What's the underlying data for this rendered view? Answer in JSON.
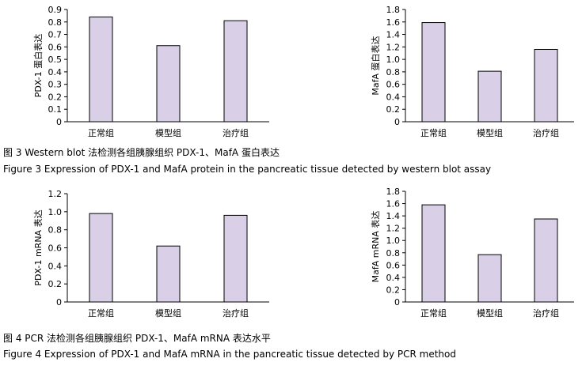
{
  "colors": {
    "bar_fill": "#d9d0e8",
    "bar_stroke": "#000000",
    "axis": "#000000"
  },
  "captions": {
    "fig3_cn": "图 3   Western blot  法检测各组胰腺组织 PDX-1、MafA 蛋白表达",
    "fig3_en": "Figure 3   Expression of PDX-1 and MafA protein in the pancreatic tissue detected by western blot assay",
    "fig4_cn": "图 4   PCR 法检测各组胰腺组织 PDX-1、MafA mRNA  表达水平",
    "fig4_en": "Figure 4   Expression of PDX-1 and MafA mRNA in the pancreatic tissue detected by PCR method"
  },
  "chart_data": [
    {
      "type": "bar",
      "ylabel": "PDX-1 蛋白表达",
      "categories": [
        "正常组",
        "模型组",
        "治疗组"
      ],
      "values": [
        0.84,
        0.61,
        0.81
      ],
      "ylim": [
        0,
        0.9
      ],
      "yticks": [
        "0",
        "0.1",
        "0.2",
        "0.3",
        "0.4",
        "0.5",
        "0.6",
        "0.7",
        "0.8",
        "0.9"
      ],
      "grid": false
    },
    {
      "type": "bar",
      "ylabel": "MafA 蛋白表达",
      "categories": [
        "正常组",
        "模型组",
        "治疗组"
      ],
      "values": [
        1.59,
        0.81,
        1.16
      ],
      "ylim": [
        0,
        1.8
      ],
      "yticks": [
        "0",
        "0.2",
        "0.4",
        "0.6",
        "0.8",
        "1.0",
        "1.2",
        "1.4",
        "1.6",
        "1.8"
      ],
      "grid": false
    },
    {
      "type": "bar",
      "ylabel": "PDX-1 mRNA 表达",
      "categories": [
        "正常组",
        "模型组",
        "治疗组"
      ],
      "values": [
        0.98,
        0.62,
        0.96
      ],
      "ylim": [
        0,
        1.2
      ],
      "yticks": [
        "0",
        "0.2",
        "0.4",
        "0.6",
        "0.8",
        "1.0",
        "1.2"
      ],
      "grid": false
    },
    {
      "type": "bar",
      "ylabel": "MafA mRNA 表达",
      "categories": [
        "正常组",
        "模型组",
        "治疗组"
      ],
      "values": [
        1.58,
        0.77,
        1.35
      ],
      "ylim": [
        0,
        1.8
      ],
      "yticks": [
        "0",
        "0.2",
        "0.4",
        "0.6",
        "0.8",
        "1.0",
        "1.2",
        "1.4",
        "1.6",
        "1.8"
      ],
      "grid": false
    }
  ]
}
